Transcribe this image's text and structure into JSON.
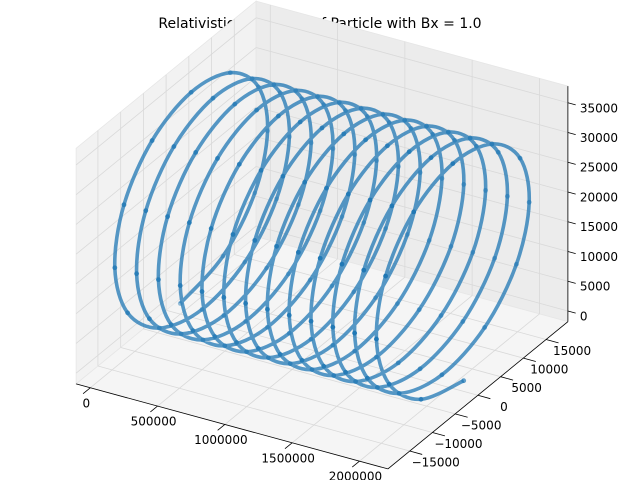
{
  "chart_data": {
    "type": "scatter3d",
    "title": "Relativistic Trajectory of Particle with Bx = 1.0",
    "color": "#1f77b4",
    "grid": true,
    "xlim": [
      -105300,
      2211300
    ],
    "ylim": [
      -19800,
      19800
    ],
    "zlim": [
      -1800,
      37800
    ],
    "xticks": [
      0,
      500000,
      1000000,
      1500000,
      2000000
    ],
    "yticks": [
      {
        "value": -15000,
        "label": "−15000"
      },
      {
        "value": -10000,
        "label": "−10000"
      },
      {
        "value": -5000,
        "label": "−5000"
      },
      0,
      5000,
      10000,
      15000
    ],
    "zticks": [
      0,
      5000,
      10000,
      15000,
      20000,
      25000,
      30000,
      35000
    ],
    "x": [
      0,
      13500,
      27000,
      40500,
      54000,
      67500,
      81000,
      94500,
      108000,
      121500,
      135000,
      148500,
      162000,
      175500,
      189000,
      202500,
      216000,
      229500,
      243000,
      256500,
      270000,
      283500,
      297000,
      310500,
      324000,
      337500,
      351000,
      364500,
      378000,
      391500,
      405000,
      418500,
      432000,
      445500,
      459000,
      472500,
      486000,
      499500,
      513000,
      526500,
      540000,
      553500,
      567000,
      580500,
      594000,
      607500,
      621000,
      634500,
      648000,
      661500,
      675000,
      688500,
      702000,
      715500,
      729000,
      742500,
      756000,
      769500,
      783000,
      796500,
      810000,
      823500,
      837000,
      850500,
      864000,
      877500,
      891000,
      904500,
      918000,
      931500,
      945000,
      958500,
      972000,
      985500,
      999000,
      1012500,
      1026000,
      1039500,
      1053000,
      1066500,
      1080000,
      1093500,
      1107000,
      1120500,
      1134000,
      1147500,
      1161000,
      1174500,
      1188000,
      1201500,
      1215000,
      1228500,
      1242000,
      1255500,
      1269000,
      1282500,
      1296000,
      1309500,
      1323000,
      1336500,
      1350000,
      1363500,
      1377000,
      1390500,
      1404000,
      1417500,
      1431000,
      1444500,
      1458000,
      1471500,
      1485000,
      1498500,
      1512000,
      1525500,
      1539000,
      1552500,
      1566000,
      1579500,
      1593000,
      1606500,
      1620000,
      1633500,
      1647000,
      1660500,
      1674000,
      1687500,
      1701000,
      1714500,
      1728000,
      1741500,
      1755000,
      1768500,
      1782000,
      1795500,
      1809000,
      1822500,
      1836000,
      1849500,
      1863000,
      1876500,
      1890000,
      1903500,
      1917000,
      1930500,
      1944000,
      1957500,
      1971000,
      1984500,
      1998000,
      2011500,
      2025000,
      2038500,
      2052000,
      2065500,
      2079000,
      2092500,
      2106000
    ],
    "y": [
      0,
      9000,
      15588,
      18000,
      15588,
      9000,
      0,
      -9000,
      -15588,
      -18000,
      -15588,
      -9000,
      0,
      9000,
      15588,
      18000,
      15588,
      9000,
      0,
      -9000,
      -15588,
      -18000,
      -15588,
      -9000,
      0,
      9000,
      15588,
      18000,
      15588,
      9000,
      0,
      -9000,
      -15588,
      -18000,
      -15588,
      -9000,
      0,
      9000,
      15588,
      18000,
      15588,
      9000,
      0,
      -9000,
      -15588,
      -18000,
      -15588,
      -9000,
      0,
      9000,
      15588,
      18000,
      15588,
      9000,
      0,
      -9000,
      -15588,
      -18000,
      -15588,
      -9000,
      0,
      9000,
      15588,
      18000,
      15588,
      9000,
      0,
      -9000,
      -15588,
      -18000,
      -15588,
      -9000,
      0,
      9000,
      15588,
      18000,
      15588,
      9000,
      0,
      -9000,
      -15588,
      -18000,
      -15588,
      -9000,
      0,
      9000,
      15588,
      18000,
      15588,
      9000,
      0,
      -9000,
      -15588,
      -18000,
      -15588,
      -9000,
      0,
      9000,
      15588,
      18000,
      15588,
      9000,
      0,
      -9000,
      -15588,
      -18000,
      -15588,
      -9000,
      0,
      9000,
      15588,
      18000,
      15588,
      9000,
      0,
      -9000,
      -15588,
      -18000,
      -15588,
      -9000,
      0,
      9000,
      15588,
      18000,
      15588,
      9000,
      0,
      -9000,
      -15588,
      -18000,
      -15588,
      -9000,
      0,
      9000,
      15588,
      18000,
      15588,
      9000,
      0,
      -9000,
      -15588,
      -18000,
      -15588,
      -9000,
      0,
      9000,
      15588,
      18000,
      15588,
      9000,
      0,
      -9000,
      -15588,
      -18000,
      -15588,
      -9000,
      0
    ],
    "z": [
      0,
      2412,
      9000,
      18000,
      27000,
      33588,
      36000,
      33588,
      27000,
      18000,
      9000,
      2412,
      0,
      2412,
      9000,
      18000,
      27000,
      33588,
      36000,
      33588,
      27000,
      18000,
      9000,
      2412,
      0,
      2412,
      9000,
      18000,
      27000,
      33588,
      36000,
      33588,
      27000,
      18000,
      9000,
      2412,
      0,
      2412,
      9000,
      18000,
      27000,
      33588,
      36000,
      33588,
      27000,
      18000,
      9000,
      2412,
      0,
      2412,
      9000,
      18000,
      27000,
      33588,
      36000,
      33588,
      27000,
      18000,
      9000,
      2412,
      0,
      2412,
      9000,
      18000,
      27000,
      33588,
      36000,
      33588,
      27000,
      18000,
      9000,
      2412,
      0,
      2412,
      9000,
      18000,
      27000,
      33588,
      36000,
      33588,
      27000,
      18000,
      9000,
      2412,
      0,
      2412,
      9000,
      18000,
      27000,
      33588,
      36000,
      33588,
      27000,
      18000,
      9000,
      2412,
      0,
      2412,
      9000,
      18000,
      27000,
      33588,
      36000,
      33588,
      27000,
      18000,
      9000,
      2412,
      0,
      2412,
      9000,
      18000,
      27000,
      33588,
      36000,
      33588,
      27000,
      18000,
      9000,
      2412,
      0,
      2412,
      9000,
      18000,
      27000,
      33588,
      36000,
      33588,
      27000,
      18000,
      9000,
      2412,
      0,
      2412,
      9000,
      18000,
      27000,
      33588,
      36000,
      33588,
      27000,
      18000,
      9000,
      2412,
      0,
      2412,
      9000,
      18000,
      27000,
      33588,
      36000,
      33588,
      27000,
      18000,
      9000,
      2412,
      0
    ]
  }
}
